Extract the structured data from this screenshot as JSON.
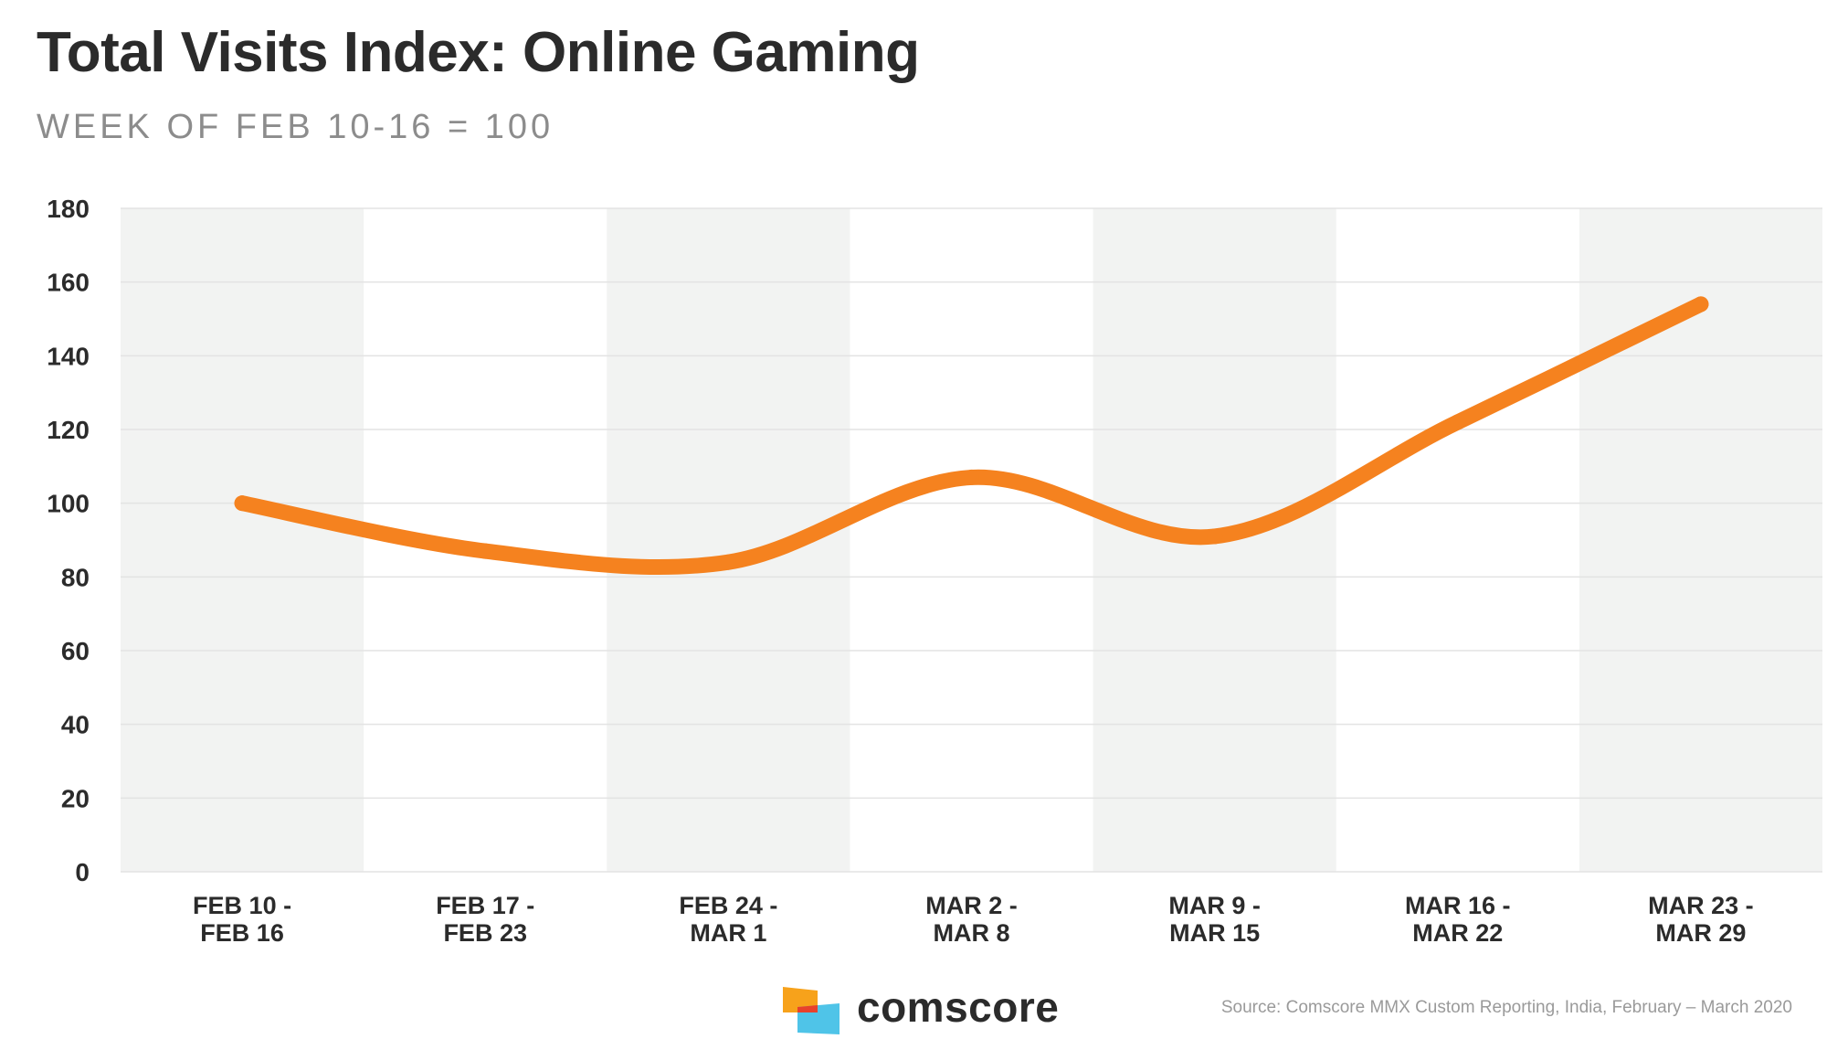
{
  "header": {
    "title": "Total Visits Index: Online Gaming",
    "subtitle": "WEEK OF FEB 10-16 = 100"
  },
  "footer": {
    "brand": "comscore",
    "source": "Source: Comscore MMX Custom Reporting, India, February – March 2020"
  },
  "colors": {
    "line": "#F5821F",
    "band": "#F2F3F2",
    "grid": "#E3E3E3",
    "text": "#2b2b2b",
    "logo_orange": "#F7A21B",
    "logo_red": "#E8412C",
    "logo_blue": "#4FC4E8"
  },
  "chart_data": {
    "type": "line",
    "title": "Total Visits Index: Online Gaming",
    "subtitle": "WEEK OF FEB 10-16 = 100",
    "categories": [
      [
        "FEB 10 -",
        "FEB 16"
      ],
      [
        "FEB 17 -",
        "FEB 23"
      ],
      [
        "FEB 24 -",
        "MAR 1"
      ],
      [
        "MAR 2 -",
        "MAR 8"
      ],
      [
        "MAR 9 -",
        "MAR 15"
      ],
      [
        "MAR 16 -",
        "MAR 22"
      ],
      [
        "MAR 23 -",
        "MAR 29"
      ]
    ],
    "values": [
      100,
      87,
      84,
      107,
      91,
      122,
      154
    ],
    "ylim": [
      0,
      180
    ],
    "yticks": [
      0,
      20,
      40,
      60,
      80,
      100,
      120,
      140,
      160,
      180
    ],
    "grid": true,
    "alternating_bands": true,
    "xlabel": "",
    "ylabel": ""
  }
}
